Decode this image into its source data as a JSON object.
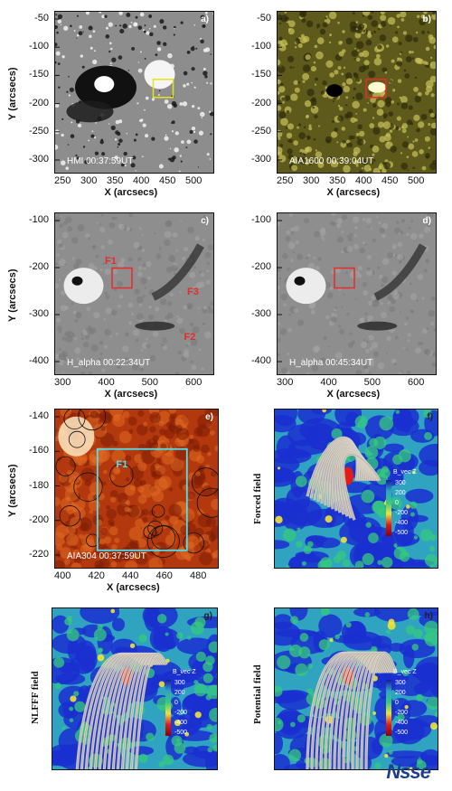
{
  "chart_data": [
    {
      "type": "heatmap",
      "panel": "a)",
      "caption": "HMI 00:37:59UT",
      "xlabel": "X (arcsecs)",
      "ylabel": "Y (arcsecs)",
      "xticks": [
        "250",
        "300",
        "350",
        "400",
        "450",
        "500"
      ],
      "yticks": [
        "-50",
        "-100",
        "-150",
        "-200",
        "-250",
        "-300"
      ],
      "xlim": [
        215,
        545
      ],
      "ylim": [
        -330,
        -20
      ]
    },
    {
      "type": "heatmap",
      "panel": "b)",
      "caption": "AIA1600 00:39:04UT",
      "xlabel": "X (arcsecs)",
      "ylabel": "",
      "xticks": [
        "250",
        "300",
        "350",
        "400",
        "450",
        "500"
      ],
      "yticks": [
        "-50",
        "-100",
        "-150",
        "-200",
        "-250",
        "-300"
      ],
      "xlim": [
        215,
        545
      ],
      "ylim": [
        -330,
        -20
      ]
    },
    {
      "type": "heatmap",
      "panel": "c)",
      "caption": "H_alpha  00:22:34UT",
      "xlabel": "X (arcsecs)",
      "ylabel": "Y (arcsecs)",
      "xticks": [
        "300",
        "400",
        "500",
        "600"
      ],
      "yticks": [
        "-100",
        "-200",
        "-300",
        "-400"
      ],
      "xlim": [
        270,
        670
      ],
      "ylim": [
        -420,
        -40
      ],
      "annotations": [
        "F1",
        "F3",
        "F2"
      ]
    },
    {
      "type": "heatmap",
      "panel": "d)",
      "caption": "H_alpha  00:45:34UT",
      "xlabel": "X (arcsecs)",
      "ylabel": "",
      "xticks": [
        "300",
        "400",
        "500",
        "600"
      ],
      "yticks": [
        "-100",
        "-200",
        "-300",
        "-400"
      ],
      "xlim": [
        270,
        670
      ],
      "ylim": [
        -420,
        -40
      ]
    },
    {
      "type": "heatmap",
      "panel": "e)",
      "caption": "AIA304  00:37:59UT",
      "xlabel": "X (arcsecs)",
      "ylabel": "Y (arcsecs)",
      "xticks": [
        "400",
        "420",
        "440",
        "460",
        "480"
      ],
      "yticks": [
        "-140",
        "-160",
        "-180",
        "-200",
        "-220"
      ],
      "xlim": [
        385,
        485
      ],
      "ylim": [
        -228,
        -137
      ],
      "annotations": [
        "F1"
      ]
    },
    {
      "type": "heatmap",
      "panel": "f)",
      "side_label": "Forced field",
      "colorbar": {
        "title": "B_vec Z",
        "ticks": [
          "300",
          "200",
          "0",
          "-200",
          "-400",
          "-500"
        ]
      }
    },
    {
      "type": "heatmap",
      "panel": "g)",
      "side_label": "NLFFF field",
      "colorbar": {
        "title": "B_vec Z",
        "ticks": [
          "300",
          "200",
          "0",
          "-200",
          "-400",
          "-500"
        ]
      }
    },
    {
      "type": "heatmap",
      "panel": "h)",
      "side_label": "Potential field",
      "colorbar": {
        "title": "B_vec Z",
        "ticks": [
          "300",
          "200",
          "0",
          "-200",
          "-400",
          "-500"
        ]
      }
    }
  ],
  "logo": "Nsse"
}
